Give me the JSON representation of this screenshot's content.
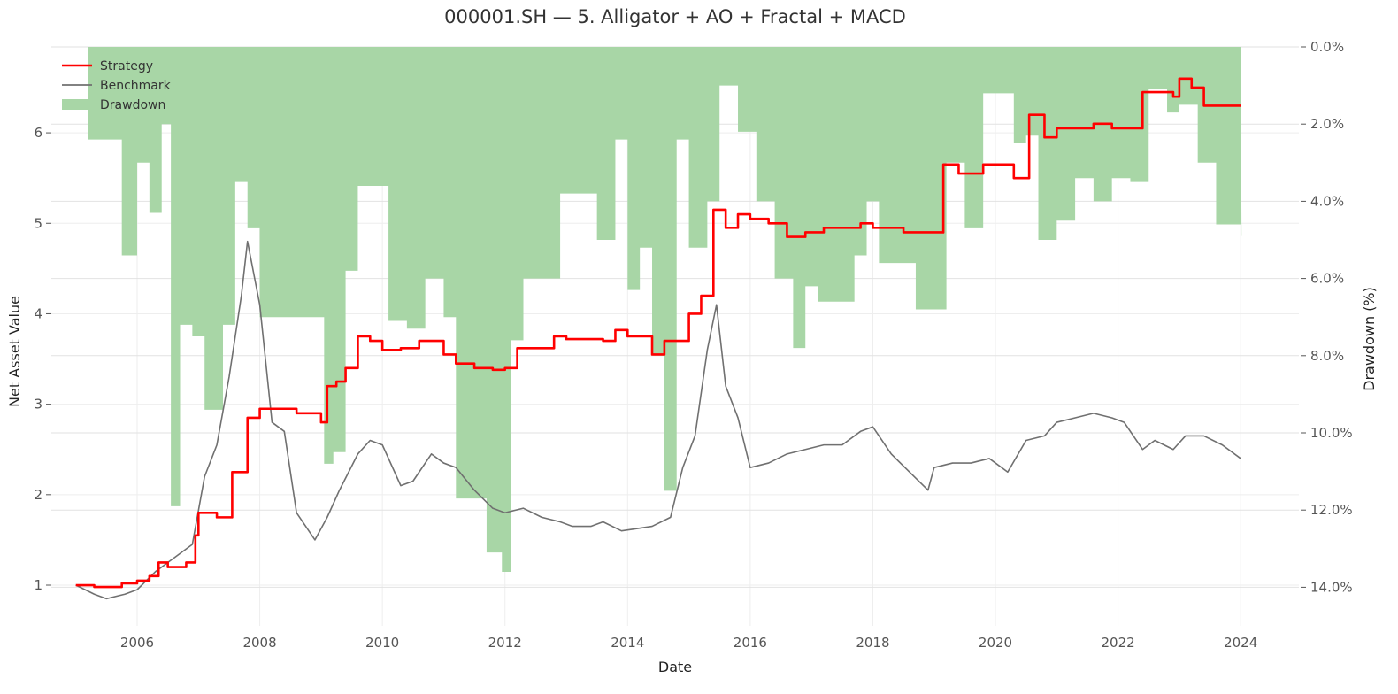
{
  "chart_data": {
    "type": "line",
    "title": "000001.SH — 5. Alligator + AO + Fractal + MACD",
    "xlabel": "Date",
    "ylabel": "Net Asset Value",
    "y2label": "Drawdown (%)",
    "xlim": [
      2004.6,
      2024.95
    ],
    "ylim": [
      0.55,
      6.95
    ],
    "y2lim": [
      0.0,
      15.0
    ],
    "x_ticks": [
      "2006",
      "2008",
      "2010",
      "2012",
      "2014",
      "2016",
      "2018",
      "2020",
      "2022",
      "2024"
    ],
    "x_tick_values": [
      2006,
      2008,
      2010,
      2012,
      2014,
      2016,
      2018,
      2020,
      2022,
      2024
    ],
    "y_ticks": [
      "1",
      "2",
      "3",
      "4",
      "5",
      "6"
    ],
    "y_tick_values": [
      1,
      2,
      3,
      4,
      5,
      6
    ],
    "y2_ticks": [
      "0.0%",
      "2.0%",
      "4.0%",
      "6.0%",
      "8.0%",
      "10.0%",
      "12.0%",
      "14.0%"
    ],
    "y2_tick_values": [
      0,
      2,
      4,
      6,
      8,
      10,
      12,
      14
    ],
    "grid": true,
    "legend_position": "top-left",
    "series": [
      {
        "name": "Strategy",
        "color": "#ff0000",
        "x": [
          2005.0,
          2005.3,
          2005.6,
          2005.75,
          2006.0,
          2006.2,
          2006.35,
          2006.5,
          2006.6,
          2006.8,
          2006.95,
          2007.0,
          2007.3,
          2007.55,
          2007.8,
          2008.0,
          2008.3,
          2008.6,
          2008.9,
          2009.0,
          2009.1,
          2009.25,
          2009.4,
          2009.6,
          2009.8,
          2010.0,
          2010.3,
          2010.6,
          2010.8,
          2011.0,
          2011.2,
          2011.5,
          2011.8,
          2012.0,
          2012.2,
          2012.5,
          2012.8,
          2013.0,
          2013.3,
          2013.6,
          2013.8,
          2014.0,
          2014.2,
          2014.4,
          2014.6,
          2014.8,
          2015.0,
          2015.2,
          2015.4,
          2015.6,
          2015.8,
          2016.0,
          2016.3,
          2016.6,
          2016.9,
          2017.2,
          2017.5,
          2017.8,
          2018.0,
          2018.5,
          2019.0,
          2019.15,
          2019.4,
          2019.6,
          2019.8,
          2020.0,
          2020.3,
          2020.55,
          2020.8,
          2021.0,
          2021.3,
          2021.6,
          2021.9,
          2022.1,
          2022.4,
          2022.6,
          2022.9,
          2023.0,
          2023.2,
          2023.4,
          2023.6,
          2024.0
        ],
        "values": [
          1.0,
          0.98,
          0.98,
          1.02,
          1.05,
          1.1,
          1.25,
          1.2,
          1.2,
          1.25,
          1.55,
          1.8,
          1.75,
          2.25,
          2.85,
          2.95,
          2.95,
          2.9,
          2.9,
          2.8,
          3.2,
          3.25,
          3.4,
          3.75,
          3.7,
          3.6,
          3.62,
          3.7,
          3.7,
          3.55,
          3.45,
          3.4,
          3.38,
          3.4,
          3.62,
          3.62,
          3.75,
          3.72,
          3.72,
          3.7,
          3.82,
          3.75,
          3.75,
          3.55,
          3.7,
          3.7,
          4.0,
          4.2,
          5.15,
          4.95,
          5.1,
          5.05,
          5.0,
          4.85,
          4.9,
          4.95,
          4.95,
          5.0,
          4.95,
          4.9,
          4.9,
          5.65,
          5.55,
          5.55,
          5.65,
          5.65,
          5.5,
          6.2,
          5.95,
          6.05,
          6.05,
          6.1,
          6.05,
          6.05,
          6.45,
          6.45,
          6.4,
          6.6,
          6.5,
          6.3,
          6.3,
          6.3
        ]
      },
      {
        "name": "Benchmark",
        "color": "#707070",
        "x": [
          2005.0,
          2005.3,
          2005.5,
          2005.8,
          2006.0,
          2006.3,
          2006.6,
          2006.9,
          2007.1,
          2007.3,
          2007.5,
          2007.7,
          2007.8,
          2008.0,
          2008.2,
          2008.4,
          2008.6,
          2008.8,
          2008.9,
          2009.1,
          2009.3,
          2009.6,
          2009.8,
          2010.0,
          2010.3,
          2010.5,
          2010.8,
          2011.0,
          2011.2,
          2011.5,
          2011.8,
          2012.0,
          2012.3,
          2012.6,
          2012.9,
          2013.1,
          2013.4,
          2013.6,
          2013.9,
          2014.1,
          2014.4,
          2014.7,
          2014.9,
          2015.1,
          2015.3,
          2015.45,
          2015.6,
          2015.8,
          2016.0,
          2016.3,
          2016.6,
          2016.9,
          2017.2,
          2017.5,
          2017.8,
          2018.0,
          2018.3,
          2018.6,
          2018.9,
          2019.0,
          2019.3,
          2019.6,
          2019.9,
          2020.2,
          2020.5,
          2020.8,
          2021.0,
          2021.3,
          2021.6,
          2021.9,
          2022.1,
          2022.4,
          2022.6,
          2022.9,
          2023.1,
          2023.4,
          2023.7,
          2024.0
        ],
        "values": [
          1.0,
          0.9,
          0.85,
          0.9,
          0.95,
          1.15,
          1.3,
          1.45,
          2.2,
          2.55,
          3.3,
          4.2,
          4.8,
          4.1,
          2.8,
          2.7,
          1.8,
          1.6,
          1.5,
          1.75,
          2.05,
          2.45,
          2.6,
          2.55,
          2.1,
          2.15,
          2.45,
          2.35,
          2.3,
          2.05,
          1.85,
          1.8,
          1.85,
          1.75,
          1.7,
          1.65,
          1.65,
          1.7,
          1.6,
          1.62,
          1.65,
          1.75,
          2.3,
          2.65,
          3.6,
          4.1,
          3.2,
          2.85,
          2.3,
          2.35,
          2.45,
          2.5,
          2.55,
          2.55,
          2.7,
          2.75,
          2.45,
          2.25,
          2.05,
          2.3,
          2.35,
          2.35,
          2.4,
          2.25,
          2.6,
          2.65,
          2.8,
          2.85,
          2.9,
          2.85,
          2.8,
          2.5,
          2.6,
          2.5,
          2.65,
          2.65,
          2.55,
          2.4
        ]
      },
      {
        "name": "Drawdown",
        "color": "#a8d6a6",
        "axis": "right",
        "x": [
          2005.0,
          2005.2,
          2005.5,
          2005.75,
          2006.0,
          2006.2,
          2006.4,
          2006.55,
          2006.7,
          2006.9,
          2007.1,
          2007.4,
          2007.6,
          2007.8,
          2008.0,
          2008.2,
          2008.5,
          2008.9,
          2009.05,
          2009.2,
          2009.4,
          2009.6,
          2009.9,
          2010.1,
          2010.4,
          2010.7,
          2011.0,
          2011.2,
          2011.4,
          2011.7,
          2011.95,
          2012.1,
          2012.3,
          2012.6,
          2012.9,
          2013.2,
          2013.5,
          2013.8,
          2014.0,
          2014.2,
          2014.4,
          2014.6,
          2014.8,
          2015.0,
          2015.3,
          2015.5,
          2015.8,
          2016.1,
          2016.4,
          2016.7,
          2016.9,
          2017.1,
          2017.4,
          2017.7,
          2017.9,
          2018.1,
          2018.4,
          2018.7,
          2019.0,
          2019.2,
          2019.5,
          2019.8,
          2020.0,
          2020.3,
          2020.5,
          2020.7,
          2021.0,
          2021.3,
          2021.6,
          2021.9,
          2022.2,
          2022.5,
          2022.8,
          2023.0,
          2023.3,
          2023.6,
          2023.9,
          2024.0
        ],
        "values": [
          0.0,
          2.4,
          2.4,
          5.4,
          3.0,
          4.3,
          2.0,
          11.9,
          7.2,
          7.5,
          9.4,
          7.2,
          3.5,
          4.7,
          7.0,
          7.0,
          7.0,
          7.0,
          10.8,
          10.5,
          5.8,
          3.6,
          3.6,
          7.1,
          7.3,
          6.0,
          7.0,
          11.7,
          11.7,
          13.1,
          13.6,
          7.6,
          6.0,
          6.0,
          3.8,
          3.8,
          5.0,
          2.4,
          6.3,
          5.2,
          8.0,
          11.5,
          2.4,
          5.2,
          4.0,
          1.0,
          2.2,
          4.0,
          6.0,
          7.8,
          6.2,
          6.6,
          6.6,
          5.4,
          4.0,
          5.6,
          5.6,
          6.8,
          6.8,
          3.0,
          4.7,
          1.2,
          1.2,
          2.5,
          2.3,
          5.0,
          4.5,
          3.4,
          4.0,
          3.4,
          3.5,
          1.1,
          1.7,
          1.5,
          3.0,
          4.6,
          4.6,
          4.9
        ]
      }
    ]
  }
}
